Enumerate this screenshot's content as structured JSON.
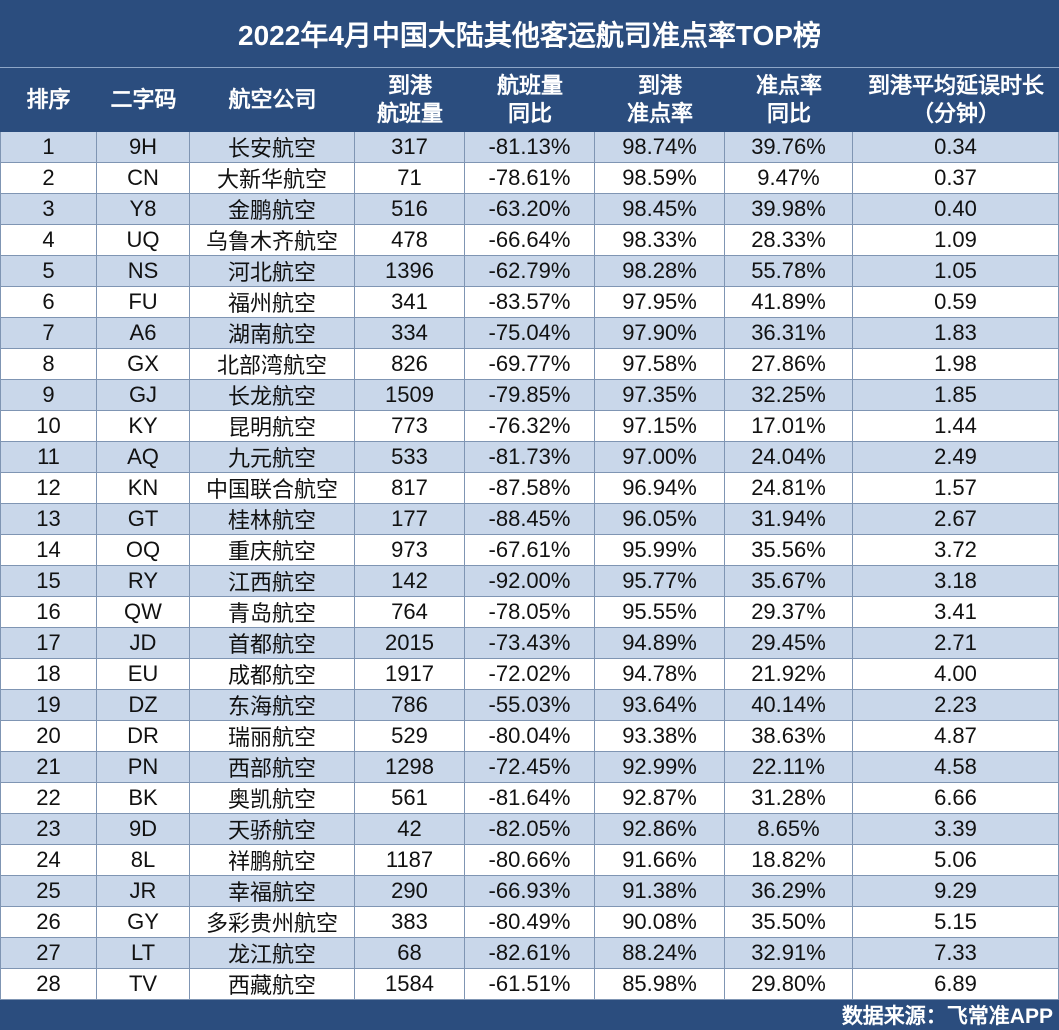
{
  "title": "2022年4月中国大陆其他客运航司准点率TOP榜",
  "table": {
    "header": [
      [
        "排序"
      ],
      [
        "二字码"
      ],
      [
        "航空公司"
      ],
      [
        "到港",
        "航班量"
      ],
      [
        "航班量",
        "同比"
      ],
      [
        "到港",
        "准点率"
      ],
      [
        "准点率",
        "同比"
      ],
      [
        "到港平均延误时长",
        "（分钟）"
      ]
    ],
    "rows": [
      [
        "1",
        "9H",
        "长安航空",
        "317",
        "-81.13%",
        "98.74%",
        "39.76%",
        "0.34"
      ],
      [
        "2",
        "CN",
        "大新华航空",
        "71",
        "-78.61%",
        "98.59%",
        "9.47%",
        "0.37"
      ],
      [
        "3",
        "Y8",
        "金鹏航空",
        "516",
        "-63.20%",
        "98.45%",
        "39.98%",
        "0.40"
      ],
      [
        "4",
        "UQ",
        "乌鲁木齐航空",
        "478",
        "-66.64%",
        "98.33%",
        "28.33%",
        "1.09"
      ],
      [
        "5",
        "NS",
        "河北航空",
        "1396",
        "-62.79%",
        "98.28%",
        "55.78%",
        "1.05"
      ],
      [
        "6",
        "FU",
        "福州航空",
        "341",
        "-83.57%",
        "97.95%",
        "41.89%",
        "0.59"
      ],
      [
        "7",
        "A6",
        "湖南航空",
        "334",
        "-75.04%",
        "97.90%",
        "36.31%",
        "1.83"
      ],
      [
        "8",
        "GX",
        "北部湾航空",
        "826",
        "-69.77%",
        "97.58%",
        "27.86%",
        "1.98"
      ],
      [
        "9",
        "GJ",
        "长龙航空",
        "1509",
        "-79.85%",
        "97.35%",
        "32.25%",
        "1.85"
      ],
      [
        "10",
        "KY",
        "昆明航空",
        "773",
        "-76.32%",
        "97.15%",
        "17.01%",
        "1.44"
      ],
      [
        "11",
        "AQ",
        "九元航空",
        "533",
        "-81.73%",
        "97.00%",
        "24.04%",
        "2.49"
      ],
      [
        "12",
        "KN",
        "中国联合航空",
        "817",
        "-87.58%",
        "96.94%",
        "24.81%",
        "1.57"
      ],
      [
        "13",
        "GT",
        "桂林航空",
        "177",
        "-88.45%",
        "96.05%",
        "31.94%",
        "2.67"
      ],
      [
        "14",
        "OQ",
        "重庆航空",
        "973",
        "-67.61%",
        "95.99%",
        "35.56%",
        "3.72"
      ],
      [
        "15",
        "RY",
        "江西航空",
        "142",
        "-92.00%",
        "95.77%",
        "35.67%",
        "3.18"
      ],
      [
        "16",
        "QW",
        "青岛航空",
        "764",
        "-78.05%",
        "95.55%",
        "29.37%",
        "3.41"
      ],
      [
        "17",
        "JD",
        "首都航空",
        "2015",
        "-73.43%",
        "94.89%",
        "29.45%",
        "2.71"
      ],
      [
        "18",
        "EU",
        "成都航空",
        "1917",
        "-72.02%",
        "94.78%",
        "21.92%",
        "4.00"
      ],
      [
        "19",
        "DZ",
        "东海航空",
        "786",
        "-55.03%",
        "93.64%",
        "40.14%",
        "2.23"
      ],
      [
        "20",
        "DR",
        "瑞丽航空",
        "529",
        "-80.04%",
        "93.38%",
        "38.63%",
        "4.87"
      ],
      [
        "21",
        "PN",
        "西部航空",
        "1298",
        "-72.45%",
        "92.99%",
        "22.11%",
        "4.58"
      ],
      [
        "22",
        "BK",
        "奥凯航空",
        "561",
        "-81.64%",
        "92.87%",
        "31.28%",
        "6.66"
      ],
      [
        "23",
        "9D",
        "天骄航空",
        "42",
        "-82.05%",
        "92.86%",
        "8.65%",
        "3.39"
      ],
      [
        "24",
        "8L",
        "祥鹏航空",
        "1187",
        "-80.66%",
        "91.66%",
        "18.82%",
        "5.06"
      ],
      [
        "25",
        "JR",
        "幸福航空",
        "290",
        "-66.93%",
        "91.38%",
        "36.29%",
        "9.29"
      ],
      [
        "26",
        "GY",
        "多彩贵州航空",
        "383",
        "-80.49%",
        "90.08%",
        "35.50%",
        "5.15"
      ],
      [
        "27",
        "LT",
        "龙江航空",
        "68",
        "-82.61%",
        "88.24%",
        "32.91%",
        "7.33"
      ],
      [
        "28",
        "TV",
        "西藏航空",
        "1584",
        "-61.51%",
        "85.98%",
        "29.80%",
        "6.89"
      ]
    ]
  },
  "footer": "数据来源：飞常准APP"
}
